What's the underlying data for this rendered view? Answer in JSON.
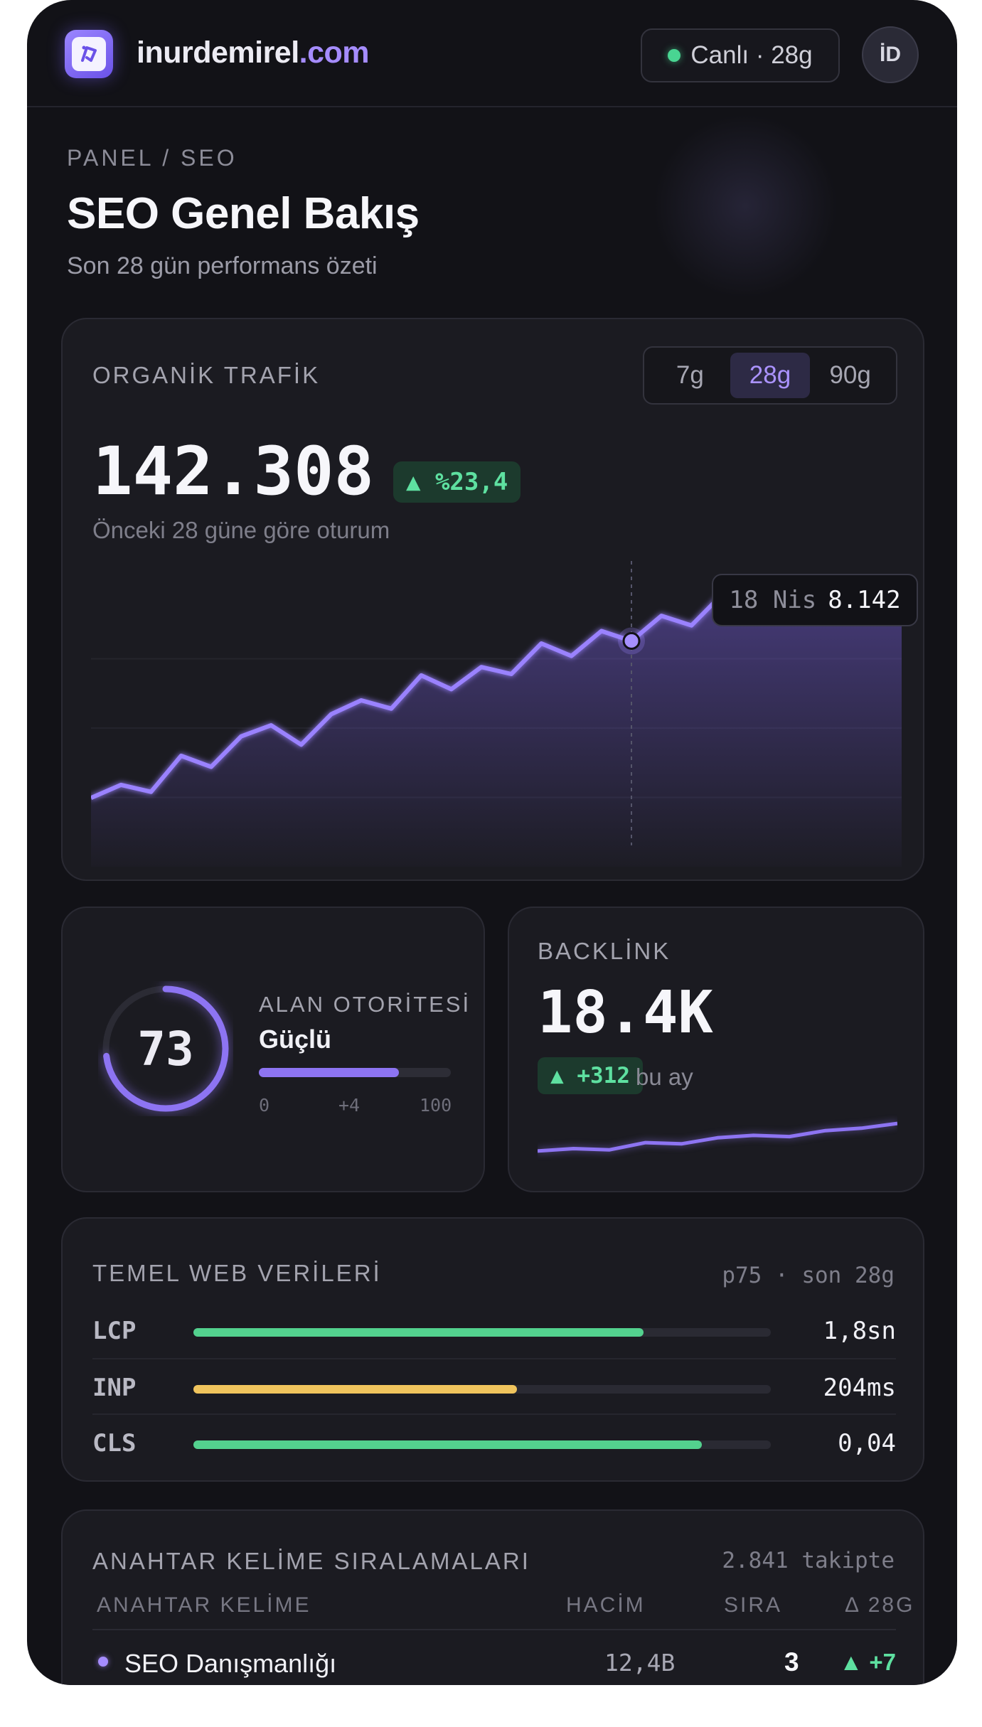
{
  "header": {
    "logo_text": "iD",
    "brand_name": "inurdemirel",
    "brand_tld": ".com",
    "live_label": "Canlı · 28g",
    "avatar_initials": "İD"
  },
  "page": {
    "breadcrumb": "PANEL / SEO",
    "title": "SEO Genel Bakış",
    "subtitle": "Son 28 gün performans özeti"
  },
  "traffic": {
    "label": "ORGANİK TRAFİK",
    "ranges": [
      "7g",
      "28g",
      "90g"
    ],
    "active_range": "28g",
    "value": "142.308",
    "delta": "▲ %23,4",
    "note": "Önceki 28 güne göre oturum",
    "tooltip_date": "18 Nis",
    "tooltip_value": "8.142",
    "accent": "#8d74f2"
  },
  "chart_data": {
    "type": "area",
    "title": "",
    "xlabel": "",
    "ylabel": "",
    "ylim": [
      0,
      10000
    ],
    "series": [
      {
        "values": [
          2480,
          2950,
          2700,
          4000,
          3600,
          4700,
          5100,
          4400,
          5500,
          6000,
          5700,
          6900,
          6400,
          7200,
          6950,
          8050,
          7600,
          8500,
          8142,
          9050,
          8700,
          9800,
          9500,
          9600,
          9400,
          9550,
          9800,
          10000
        ]
      }
    ],
    "highlight_index": 18,
    "highlight_value": 8142
  },
  "authority": {
    "score": "73",
    "score_value": 73,
    "label": "ALAN OTORİTESİ",
    "strength": "Güçlü",
    "scale_min": "0",
    "scale_change": "+4",
    "scale_max": "100"
  },
  "backlink": {
    "label": "BACKLİNK",
    "value": "18.4K",
    "delta": "▲ +312",
    "note": "bu ay",
    "sparkline": [
      16.9,
      17.0,
      16.95,
      17.25,
      17.2,
      17.45,
      17.55,
      17.5,
      17.75,
      17.85,
      18.05
    ]
  },
  "vitals": {
    "label": "TEMEL WEB VERİLERİ",
    "meta": "p75 · son 28g",
    "rows": [
      {
        "name": "LCP",
        "value": "1,8sn",
        "fill": 0.78,
        "color": "#53d18e"
      },
      {
        "name": "INP",
        "value": "204ms",
        "fill": 0.56,
        "color": "#f0c45d"
      },
      {
        "name": "CLS",
        "value": "0,04",
        "fill": 0.88,
        "color": "#53d18e"
      }
    ]
  },
  "keywords": {
    "label": "ANAHTAR KELİME SIRALAMALARI",
    "count": "2.841 takipte",
    "columns": [
      "ANAHTAR KELİME",
      "HACİM",
      "SIRA",
      "Δ 28G"
    ],
    "rows": [
      {
        "keyword": "SEO Danışmanlığı",
        "volume": "12,4B",
        "rank": "3",
        "delta": "▲ +7"
      }
    ]
  }
}
